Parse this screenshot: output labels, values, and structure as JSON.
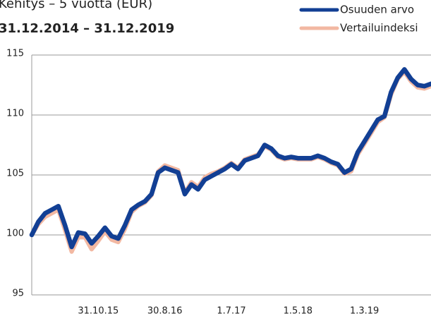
{
  "chart_data": {
    "type": "line",
    "title": "Kehitys – 5 vuotta (EUR)",
    "subtitle": "31.12.2014 – 31.12.2019",
    "categories": [
      null,
      null,
      null,
      null,
      null,
      null,
      null,
      null,
      null,
      null,
      "31.10.15",
      null,
      null,
      null,
      null,
      null,
      null,
      null,
      null,
      null,
      "30.8.16",
      null,
      null,
      null,
      null,
      null,
      null,
      null,
      null,
      null,
      "1.7.17",
      null,
      null,
      null,
      null,
      null,
      null,
      null,
      null,
      null,
      "1.5.18",
      null,
      null,
      null,
      null,
      null,
      null,
      null,
      null,
      null,
      "1.3.19",
      null,
      null,
      null,
      null,
      null,
      null,
      null,
      null,
      null,
      null
    ],
    "series": [
      {
        "name": "Vertailuindeksi",
        "color": "#f2b8a2",
        "values": [
          100.0,
          100.9,
          101.5,
          101.8,
          102.1,
          100.4,
          98.6,
          99.8,
          99.8,
          98.8,
          99.5,
          100.3,
          99.6,
          99.4,
          100.5,
          101.9,
          102.4,
          102.7,
          103.3,
          105.3,
          105.8,
          105.6,
          105.4,
          103.5,
          104.4,
          104.0,
          104.8,
          105.1,
          105.3,
          105.6,
          106.0,
          105.6,
          106.3,
          106.5,
          106.7,
          107.4,
          107.1,
          106.5,
          106.3,
          106.4,
          106.3,
          106.3,
          106.3,
          106.5,
          106.3,
          106.0,
          105.8,
          105.1,
          105.3,
          106.7,
          107.6,
          108.5,
          109.4,
          109.8,
          111.7,
          113.0,
          113.6,
          112.8,
          112.3,
          112.2,
          112.4
        ]
      },
      {
        "name": "Osuuden arvo",
        "color": "#123f94",
        "values": [
          100.0,
          101.1,
          101.8,
          102.1,
          102.4,
          100.8,
          99.0,
          100.2,
          100.1,
          99.3,
          99.9,
          100.6,
          99.9,
          99.7,
          100.8,
          102.1,
          102.5,
          102.8,
          103.4,
          105.2,
          105.6,
          105.4,
          105.2,
          103.4,
          104.2,
          103.8,
          104.6,
          104.9,
          105.2,
          105.5,
          105.9,
          105.5,
          106.2,
          106.4,
          106.6,
          107.5,
          107.2,
          106.6,
          106.4,
          106.5,
          106.4,
          106.4,
          106.4,
          106.6,
          106.4,
          106.1,
          105.9,
          105.2,
          105.5,
          106.9,
          107.8,
          108.7,
          109.6,
          109.9,
          111.9,
          113.1,
          113.8,
          113.0,
          112.5,
          112.4,
          112.6
        ]
      }
    ],
    "ylim": [
      95,
      115
    ],
    "yticks": [
      95,
      100,
      105,
      110,
      115
    ],
    "grid": true
  }
}
